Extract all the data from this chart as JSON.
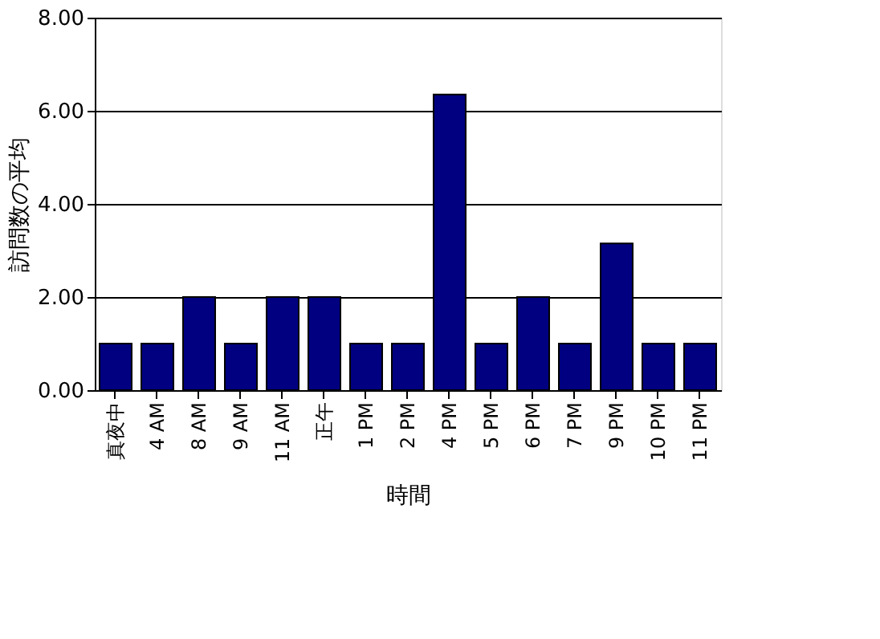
{
  "chart_data": {
    "type": "bar",
    "xlabel": "時間",
    "ylabel": "訪問数の平均",
    "categories": [
      "真夜中",
      "4 AM",
      "8 AM",
      "9 AM",
      "11 AM",
      "正午",
      "1 PM",
      "2 PM",
      "4 PM",
      "5 PM",
      "6 PM",
      "7 PM",
      "9 PM",
      "10 PM",
      "11 PM"
    ],
    "values": [
      1,
      1,
      2,
      1,
      2,
      2,
      1,
      1,
      6.35,
      1,
      2,
      1,
      3.15,
      1,
      1
    ],
    "color": "#000080",
    "ylim": [
      0,
      8
    ],
    "yticks": [
      {
        "value": 0,
        "label": "0.00"
      },
      {
        "value": 2,
        "label": "2.00"
      },
      {
        "value": 4,
        "label": "4.00"
      },
      {
        "value": 6,
        "label": "6.00"
      },
      {
        "value": 8,
        "label": "8.00"
      }
    ],
    "grid": "y"
  }
}
